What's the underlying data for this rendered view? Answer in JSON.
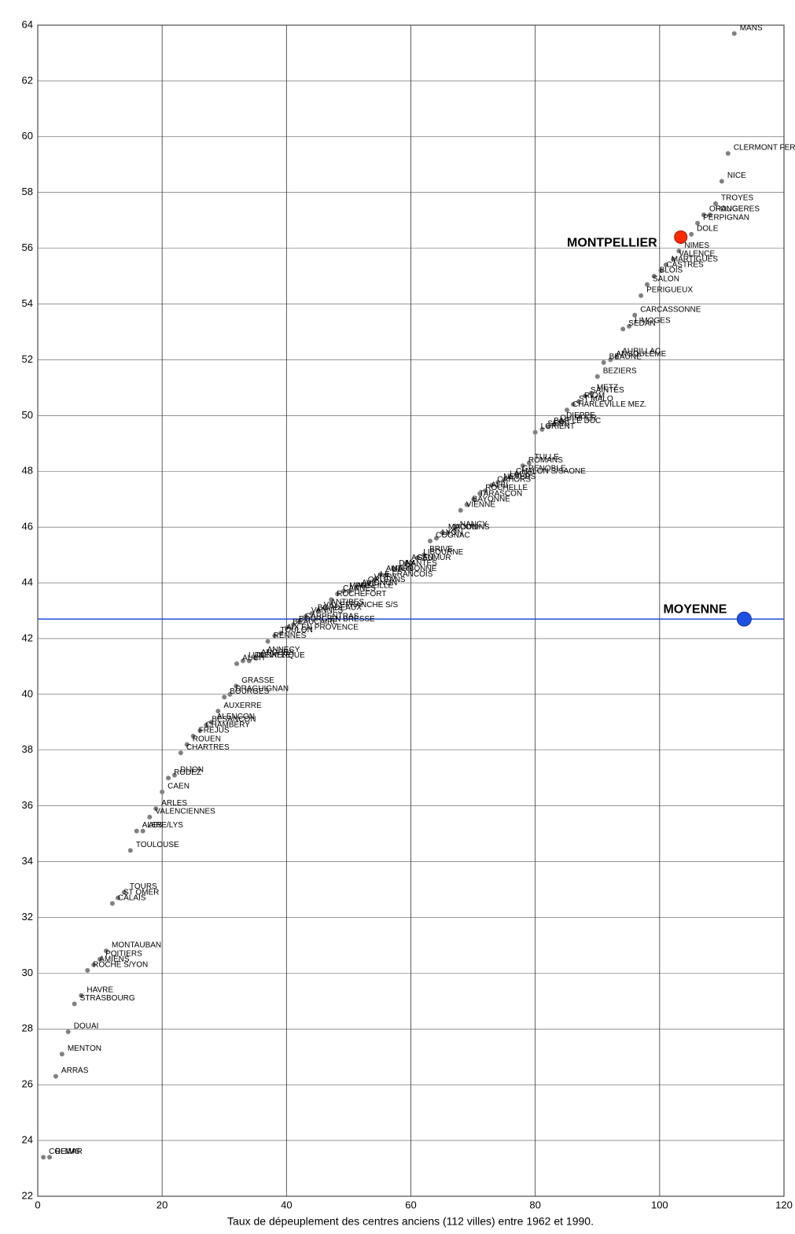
{
  "chart_data": {
    "type": "scatter",
    "xlabel": "Taux de dépeuplement des centres anciens (112 villes) entre 1962 et 1990.",
    "xlim": [
      0,
      120
    ],
    "xticks": [
      0,
      20,
      40,
      60,
      80,
      100,
      120
    ],
    "ylim": [
      22,
      64
    ],
    "yticks": [
      22,
      24,
      26,
      28,
      30,
      32,
      34,
      36,
      38,
      40,
      42,
      44,
      46,
      48,
      50,
      52,
      54,
      56,
      58,
      60,
      62,
      64
    ],
    "grid": true,
    "color": "#808080",
    "labels": [
      "MANS",
      "CLERMONT FERRAND",
      "NICE",
      "TROYES",
      "FOUGERES",
      "ORANGE",
      "PERPIGNAN",
      "DOLE",
      "NIMES",
      "VALENCE",
      "MARTIGUES",
      "CASTRES",
      "BLOIS",
      "SALON",
      "PERIGUEUX",
      "CARCASSONNE",
      "LIMOGES",
      "SEDAN",
      "AURILLAC",
      "ANGOULEME",
      "BEAUNE",
      "BEZIERS",
      "METZ",
      "SAINTES",
      "RIOM",
      "ST MALO",
      "CHARLEVILLE MEZ.",
      "DIEPPE",
      "QUIMPER",
      "BAR LE DUC",
      "SENS",
      "LORIENT",
      "TULLE",
      "ROMANS",
      "GRENOBLE",
      "CHALON S/SAONE",
      "LAON",
      "NEVERS",
      "CAHORS",
      "ALBI",
      "ROCHELLE",
      "TARASCON",
      "BAYONNE",
      "VIENNE",
      "NANCY",
      "MOULINS",
      "MACON",
      "LYON",
      "COGNAC",
      "BRIVE",
      "LIBOURNE",
      "SAUMUR",
      "AGEN",
      "NANTES",
      "DAX",
      "NARBONNE",
      "AUTUN",
      "LE FRANCOIS",
      "VITRY",
      "ORLEANS",
      "AVIGNON",
      "PUY",
      "MARSEILLE",
      "CANNES",
      "ROCHEFORT",
      "ANTIBES",
      "VILLEFRANCHE S/S",
      "BORDEAUX",
      "VANNES",
      "CARPENTRAS",
      "BOURG EN BRESSE",
      "BEAUCAIRE",
      "AIX EN PROVENCE",
      "TOULON",
      "RENNES",
      "ANNECY",
      "ANGERS",
      "DUNKERQUE",
      "LUNEVILLE",
      "AUCH",
      "GRASSE",
      "DRAGUIGNAN",
      "BOURGES",
      "AUXERRE",
      "ALENCON",
      "BESANCON",
      "CHAMBERY",
      "FREJUS",
      "ROUEN",
      "CHARTRES",
      "DIJON",
      "RODEZ",
      "CAEN",
      "ARLES",
      "VALENCIENNES",
      "AIRE/LYS",
      "ALES",
      "TOULOUSE",
      "TOURS",
      "ST OMER",
      "CALAIS",
      "MONTAUBAN",
      "POITIERS",
      "AMIENS",
      "ROCHE S/YON",
      "HAVRE",
      "STRASBOURG",
      "DOUAI",
      "MENTON",
      "ARRAS",
      "REIMS",
      "COLMAR"
    ],
    "x": [
      112.0,
      111.0,
      110.0,
      109.0,
      108.1,
      107.1,
      106.1,
      105.1,
      103.1,
      102.2,
      101.0,
      100.2,
      99.1,
      98.0,
      97.0,
      96.0,
      95.1,
      94.1,
      93.1,
      92.1,
      91.0,
      90.0,
      89.0,
      88.0,
      87.0,
      86.1,
      85.1,
      84.1,
      83.1,
      82.1,
      81.1,
      80.0,
      79.0,
      78.0,
      77.0,
      76.0,
      75.0,
      74.0,
      73.0,
      72.0,
      71.1,
      70.1,
      69.0,
      68.0,
      67.0,
      66.0,
      65.1,
      64.1,
      63.1,
      62.1,
      61.1,
      60.1,
      59.2,
      58.2,
      57.2,
      56.1,
      55.1,
      54.2,
      53.2,
      52.2,
      51.2,
      50.2,
      49.2,
      48.2,
      47.2,
      46.2,
      45.1,
      44.1,
      43.1,
      42.1,
      41.1,
      40.1,
      39.1,
      38.1,
      37.0,
      36.0,
      35.0,
      34.0,
      33.0,
      32.0,
      31.9,
      30.9,
      30.0,
      29.0,
      27.9,
      27.1,
      26.1,
      25.0,
      24.0,
      23.0,
      22.0,
      21.0,
      20.0,
      19.0,
      18.0,
      16.9,
      15.9,
      14.9,
      13.9,
      12.9,
      12.0,
      11.0,
      10.0,
      9.0,
      8.0,
      7.0,
      5.9,
      4.9,
      3.9,
      2.9,
      1.9,
      0.9
    ],
    "values": [
      63.7,
      59.4,
      58.4,
      57.6,
      57.2,
      57.2,
      56.9,
      56.5,
      55.9,
      55.6,
      55.4,
      55.2,
      55.0,
      54.7,
      54.3,
      53.6,
      53.2,
      53.1,
      52.1,
      52.0,
      51.9,
      51.4,
      50.8,
      50.7,
      50.5,
      50.4,
      50.2,
      49.8,
      49.7,
      49.6,
      49.5,
      49.4,
      48.3,
      48.2,
      47.9,
      47.8,
      47.7,
      47.6,
      47.5,
      47.3,
      47.2,
      47.0,
      46.8,
      46.6,
      45.9,
      45.8,
      45.8,
      45.6,
      45.5,
      45.0,
      44.9,
      44.7,
      44.7,
      44.5,
      44.5,
      44.3,
      44.3,
      44.1,
      44.0,
      43.9,
      43.8,
      43.7,
      43.7,
      43.6,
      43.4,
      43.1,
      43.0,
      42.9,
      42.8,
      42.6,
      42.5,
      42.4,
      42.2,
      42.1,
      41.9,
      41.4,
      41.3,
      41.2,
      41.2,
      41.1,
      40.3,
      40.0,
      39.9,
      39.4,
      39.0,
      38.9,
      38.7,
      38.5,
      38.2,
      37.9,
      37.1,
      37.0,
      36.5,
      35.9,
      35.6,
      35.1,
      35.1,
      34.4,
      32.9,
      32.7,
      32.5,
      30.8,
      30.5,
      30.3,
      30.1,
      29.2,
      28.9,
      27.9,
      27.1,
      26.3,
      23.4,
      23.4
    ],
    "highlight": {
      "label": "MONTPELLIER",
      "x": 103.4,
      "y": 56.4,
      "color": "#ff2a00"
    },
    "mean": {
      "label": "MOYENNE",
      "value": 42.7,
      "x": 113.6,
      "color": "#1f4fe0"
    }
  }
}
